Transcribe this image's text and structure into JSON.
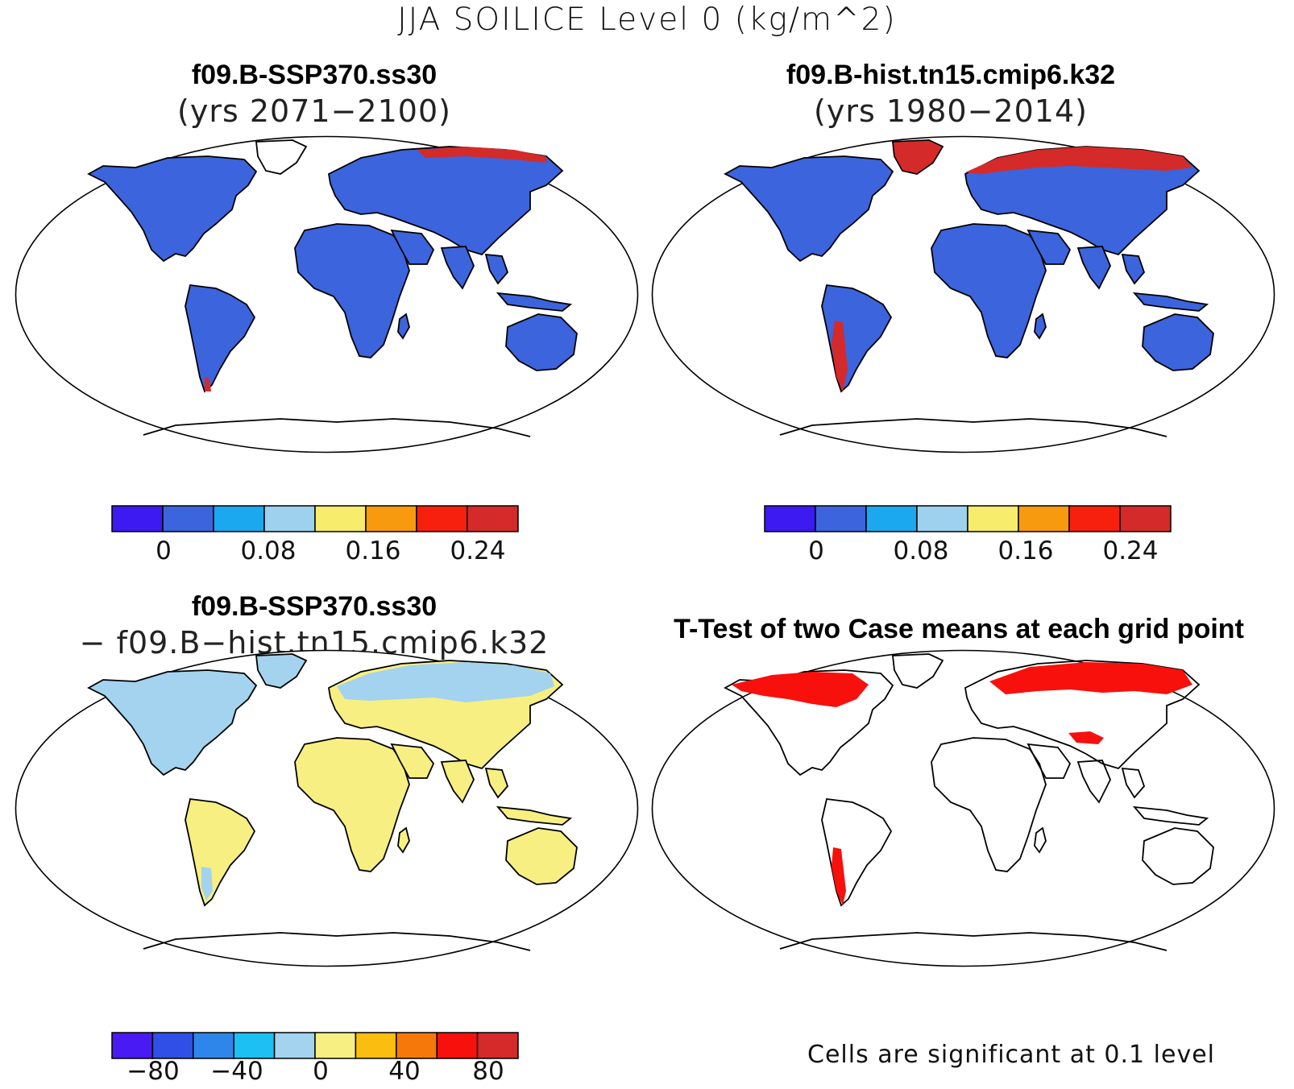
{
  "main_title": "JJA SOILICE Level 0 (kg/m^2)",
  "panels": [
    {
      "title": "f09.B-SSP370.ss30",
      "subtitle": "(yrs 2071−2100)"
    },
    {
      "title": "f09.B-hist.tn15.cmip6.k32",
      "subtitle": "(yrs 1980−2014)"
    },
    {
      "title": "f09.B-SSP370.ss30",
      "subtitle": "− f09.B−hist.tn15.cmip6.k32"
    },
    {
      "title": "T-Test of two Case means at each grid point",
      "subtitle": ""
    }
  ],
  "colorbars": {
    "case": {
      "colors": [
        "#3d1af2",
        "#3c64dc",
        "#1ca8ee",
        "#9ed1ee",
        "#f7ec6b",
        "#f79a10",
        "#f7200c",
        "#d42a2a"
      ],
      "tick_labels": [
        "0",
        "0.08",
        "0.16",
        "0.24"
      ],
      "tick_values": [
        0,
        0.08,
        0.16,
        0.24
      ],
      "levels": [
        -0.04,
        0,
        0.04,
        0.08,
        0.12,
        0.16,
        0.2,
        0.24,
        0.28
      ]
    },
    "diff": {
      "colors": [
        "#4a1af2",
        "#2f4fe6",
        "#2e86ea",
        "#1cc0f2",
        "#a3d3ee",
        "#f7ef82",
        "#fbbd0f",
        "#f7780a",
        "#f7100c",
        "#d42a2a"
      ],
      "tick_labels": [
        "−80",
        "−40",
        "0",
        "40",
        "80"
      ],
      "tick_values": [
        -80,
        -40,
        0,
        40,
        80
      ],
      "levels": [
        -100,
        -80,
        -60,
        -40,
        -20,
        0,
        20,
        40,
        60,
        80,
        100
      ]
    }
  },
  "significance_note": "Cells are significant at 0.1 level",
  "map_colors": {
    "case_land": "#3c64dc",
    "diff_land_positive": "#f7ef82",
    "diff_land_negative": "#a3d3ee",
    "significant": "#f7100c",
    "high": "#d42a2a",
    "coast": "#000000"
  }
}
